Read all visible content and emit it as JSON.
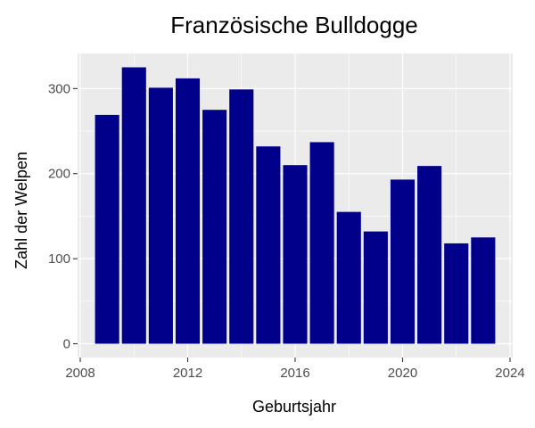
{
  "chart_data": {
    "type": "bar",
    "title": "Französische Bulldogge",
    "xlabel": "Geburtsjahr",
    "ylabel": "Zahl der Welpen",
    "x": [
      2009,
      2010,
      2011,
      2012,
      2013,
      2014,
      2015,
      2016,
      2017,
      2018,
      2019,
      2020,
      2021,
      2022,
      2023
    ],
    "values": [
      269,
      325,
      301,
      312,
      275,
      299,
      232,
      210,
      237,
      155,
      132,
      193,
      209,
      118,
      125
    ],
    "xlim": [
      2007.9,
      2024.1
    ],
    "ylim": [
      -16.25,
      341.25
    ],
    "xticks": [
      2008,
      2012,
      2016,
      2020,
      2024
    ],
    "yticks": [
      0,
      100,
      200,
      300
    ],
    "bar_color": "#00008B",
    "panel_background": "#EBEBEB",
    "grid_color": "#FFFFFF",
    "grid": true
  }
}
